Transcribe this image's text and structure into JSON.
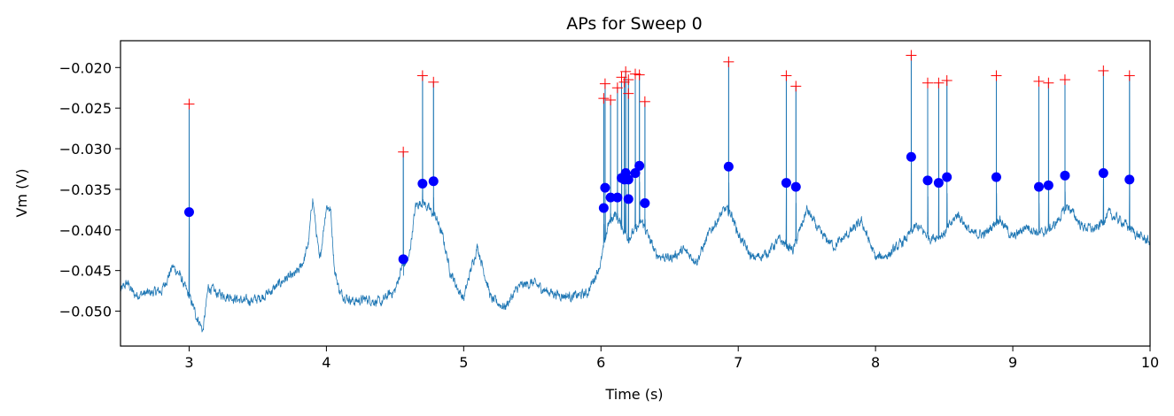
{
  "chart_data": {
    "type": "line",
    "title": "APs for Sweep 0",
    "xlabel": "Time (s)",
    "ylabel": "Vm (V)",
    "xlim": [
      2.5,
      10.0
    ],
    "ylim": [
      -0.0543,
      -0.0167
    ],
    "x_ticks": [
      3,
      4,
      5,
      6,
      7,
      8,
      9,
      10
    ],
    "x_tick_labels": [
      "3",
      "4",
      "5",
      "6",
      "7",
      "8",
      "9",
      "10"
    ],
    "y_ticks": [
      -0.05,
      -0.045,
      -0.04,
      -0.035,
      -0.03,
      -0.025,
      -0.02
    ],
    "y_tick_labels": [
      "−0.050",
      "−0.045",
      "−0.040",
      "−0.035",
      "−0.030",
      "−0.025",
      "−0.020"
    ],
    "grid": false,
    "colors": {
      "trace": "#1f77b4",
      "peak_marker": "#ff0000",
      "threshold_marker": "#0000ff"
    },
    "baseline_trace": {
      "x": [
        2.5,
        2.55,
        2.6,
        2.7,
        2.8,
        2.88,
        2.93,
        2.98,
        3.02,
        3.05,
        3.08,
        3.1,
        3.14,
        3.2,
        3.3,
        3.4,
        3.5,
        3.6,
        3.7,
        3.75,
        3.8,
        3.84,
        3.87,
        3.9,
        3.95,
        4.0,
        4.03,
        4.06,
        4.1,
        4.2,
        4.3,
        4.4,
        4.45,
        4.5,
        4.55,
        4.6,
        4.65,
        4.7,
        4.75,
        4.8,
        4.85,
        4.9,
        4.95,
        5.0,
        5.05,
        5.1,
        5.2,
        5.3,
        5.4,
        5.5,
        5.6,
        5.7,
        5.8,
        5.9,
        5.95,
        6.0,
        6.05,
        6.1,
        6.2,
        6.3,
        6.4,
        6.5,
        6.6,
        6.7,
        6.8,
        6.9,
        6.95,
        7.0,
        7.1,
        7.2,
        7.3,
        7.4,
        7.5,
        7.6,
        7.7,
        7.8,
        7.9,
        8.0,
        8.1,
        8.2,
        8.3,
        8.4,
        8.5,
        8.6,
        8.7,
        8.8,
        8.9,
        9.0,
        9.1,
        9.2,
        9.3,
        9.4,
        9.5,
        9.6,
        9.7,
        9.8,
        9.9,
        10.0
      ],
      "y": [
        -0.0475,
        -0.0465,
        -0.048,
        -0.0478,
        -0.0475,
        -0.0445,
        -0.0455,
        -0.0475,
        -0.049,
        -0.0505,
        -0.0515,
        -0.0525,
        -0.047,
        -0.0478,
        -0.0482,
        -0.0488,
        -0.0485,
        -0.0475,
        -0.046,
        -0.0458,
        -0.045,
        -0.0435,
        -0.0415,
        -0.036,
        -0.044,
        -0.037,
        -0.0375,
        -0.045,
        -0.0478,
        -0.0488,
        -0.0485,
        -0.049,
        -0.048,
        -0.0475,
        -0.0445,
        -0.0436,
        -0.037,
        -0.0365,
        -0.0375,
        -0.0385,
        -0.041,
        -0.045,
        -0.047,
        -0.0485,
        -0.045,
        -0.042,
        -0.0485,
        -0.0495,
        -0.047,
        -0.0465,
        -0.0475,
        -0.048,
        -0.0482,
        -0.0478,
        -0.046,
        -0.044,
        -0.0395,
        -0.038,
        -0.041,
        -0.039,
        -0.043,
        -0.0435,
        -0.0425,
        -0.0438,
        -0.04,
        -0.0375,
        -0.038,
        -0.0405,
        -0.0435,
        -0.043,
        -0.0412,
        -0.0425,
        -0.0375,
        -0.0405,
        -0.042,
        -0.0405,
        -0.039,
        -0.0435,
        -0.043,
        -0.0415,
        -0.0395,
        -0.041,
        -0.0405,
        -0.038,
        -0.0405,
        -0.0405,
        -0.0385,
        -0.041,
        -0.0395,
        -0.0405,
        -0.0395,
        -0.037,
        -0.0395,
        -0.04,
        -0.038,
        -0.039,
        -0.0405,
        -0.0415
      ]
    },
    "spikes": {
      "x": [
        3.0,
        4.56,
        4.7,
        4.78,
        6.02,
        6.03,
        6.07,
        6.12,
        6.15,
        6.17,
        6.18,
        6.2,
        6.2,
        6.25,
        6.28,
        6.32,
        6.93,
        7.35,
        7.42,
        8.26,
        8.38,
        8.46,
        8.52,
        8.88,
        9.19,
        9.26,
        9.38,
        9.66,
        9.85
      ],
      "peak_y": [
        -0.0245,
        -0.0304,
        -0.021,
        -0.0218,
        -0.0238,
        -0.022,
        -0.024,
        -0.0225,
        -0.0212,
        -0.0218,
        -0.0205,
        -0.0215,
        -0.0232,
        -0.0208,
        -0.0209,
        -0.0242,
        -0.0193,
        -0.021,
        -0.0223,
        -0.0185,
        -0.0219,
        -0.0219,
        -0.0216,
        -0.021,
        -0.0217,
        -0.0219,
        -0.0215,
        -0.0204,
        -0.021
      ],
      "threshold_y": [
        -0.0378,
        -0.0436,
        -0.0343,
        -0.034,
        -0.0373,
        -0.0348,
        -0.036,
        -0.036,
        -0.0336,
        -0.0338,
        -0.033,
        -0.0338,
        -0.0362,
        -0.033,
        -0.0321,
        -0.0367,
        -0.0322,
        -0.0342,
        -0.0347,
        -0.031,
        -0.0339,
        -0.0342,
        -0.0335,
        -0.0335,
        -0.0347,
        -0.0345,
        -0.0333,
        -0.033,
        -0.0338
      ]
    }
  }
}
